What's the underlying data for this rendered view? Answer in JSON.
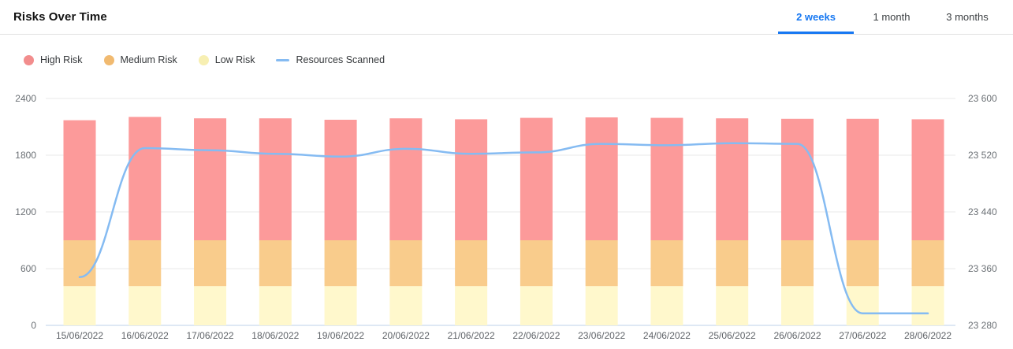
{
  "header": {
    "title": "Risks Over Time",
    "tabs": [
      {
        "label": "2 weeks",
        "active": true
      },
      {
        "label": "1 month",
        "active": false
      },
      {
        "label": "3 months",
        "active": false
      }
    ],
    "accent_color": "#1778f2"
  },
  "legend": {
    "items": [
      {
        "label": "High Risk",
        "swatch": "dot",
        "color": "#f28d8d"
      },
      {
        "label": "Medium Risk",
        "swatch": "dot",
        "color": "#f1ba70"
      },
      {
        "label": "Low Risk",
        "swatch": "dot",
        "color": "#f7efb2"
      },
      {
        "label": "Resources Scanned",
        "swatch": "line",
        "color": "#85bbf2"
      }
    ]
  },
  "chart_data": {
    "type": "bar",
    "subtype": "stacked-bars-with-line",
    "title": "Risks Over Time",
    "categories": [
      "15/06/2022",
      "16/06/2022",
      "17/06/2022",
      "18/06/2022",
      "19/06/2022",
      "20/06/2022",
      "21/06/2022",
      "22/06/2022",
      "23/06/2022",
      "24/06/2022",
      "25/06/2022",
      "26/06/2022",
      "27/06/2022",
      "28/06/2022"
    ],
    "series": [
      {
        "name": "High Risk",
        "type": "bar",
        "axis": "left",
        "color": "#fc9a9a",
        "values": [
          1270,
          1305,
          1290,
          1290,
          1275,
          1290,
          1280,
          1295,
          1300,
          1295,
          1290,
          1285,
          1285,
          1280
        ]
      },
      {
        "name": "Medium Risk",
        "type": "bar",
        "axis": "left",
        "color": "#f9cc8c",
        "values": [
          485,
          485,
          485,
          485,
          485,
          485,
          485,
          485,
          485,
          485,
          485,
          485,
          485,
          485
        ]
      },
      {
        "name": "Low Risk",
        "type": "bar",
        "axis": "left",
        "color": "#fff8cc",
        "values": [
          415,
          415,
          415,
          415,
          415,
          415,
          415,
          415,
          415,
          415,
          415,
          415,
          415,
          415
        ]
      },
      {
        "name": "Resources Scanned",
        "type": "line",
        "axis": "right",
        "color": "#85bbf2",
        "values": [
          23348,
          23530,
          23527,
          23522,
          23518,
          23529,
          23522,
          23524,
          23536,
          23534,
          23537,
          23536,
          23297,
          23297
        ]
      }
    ],
    "left_axis": {
      "range": [
        0,
        2400
      ],
      "ticks": [
        0,
        600,
        1200,
        1800,
        2400
      ],
      "labels": [
        "0",
        "600",
        "1200",
        "1800",
        "2400"
      ]
    },
    "right_axis": {
      "range": [
        23280,
        23600
      ],
      "ticks": [
        23280,
        23360,
        23440,
        23520,
        23600
      ],
      "labels": [
        "23 280",
        "23 360",
        "23 440",
        "23 520",
        "23 600"
      ]
    },
    "grid": true,
    "gridline_color": "#e9e9e9",
    "baseline_color": "#bdd0ea",
    "legend_position": "top-left"
  }
}
